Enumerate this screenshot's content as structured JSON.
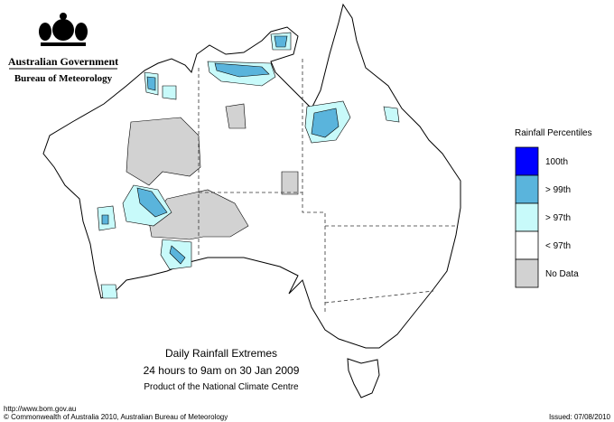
{
  "header": {
    "government": "Australian Government",
    "agency": "Bureau of Meteorology"
  },
  "legend": {
    "title": "Rainfall Percentiles",
    "items": [
      {
        "label": "100th",
        "color": "#0000ff"
      },
      {
        "label": "> 99th",
        "color": "#5ab4dc"
      },
      {
        "label": "> 97th",
        "color": "#c8fafa"
      },
      {
        "label": "< 97th",
        "color": "#ffffff"
      },
      {
        "label": "No Data",
        "color": "#d2d2d2"
      }
    ]
  },
  "caption": {
    "title": "Daily Rainfall Extremes",
    "period": "24 hours to 9am on 30 Jan 2009",
    "product": "Product of the National Climate Centre"
  },
  "footer": {
    "url": "http://www.bom.gov.au",
    "copyright": "© Commonwealth of Australia 2010, Australian Bureau of Meteorology",
    "issued": "Issued: 07/08/2010"
  }
}
